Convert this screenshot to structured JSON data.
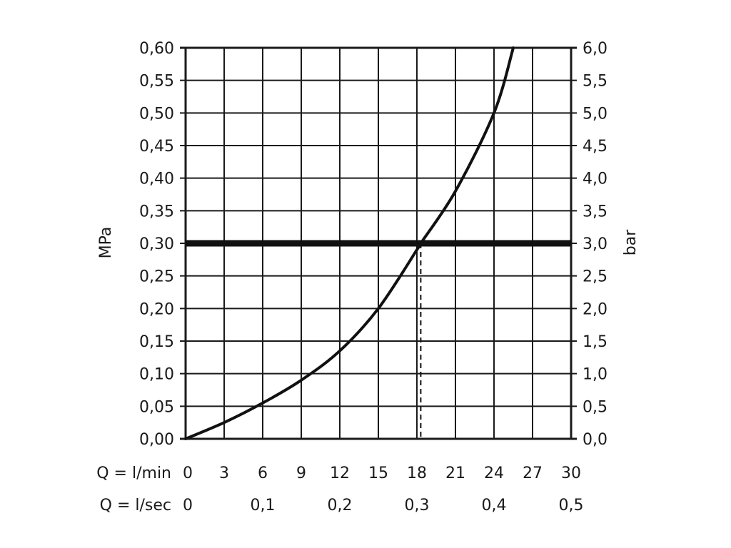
{
  "chart_data": {
    "type": "line",
    "title": "",
    "ylabel_left": "MPa",
    "ylabel_right": "bar",
    "x_rows": [
      {
        "label": "Q = l/min",
        "ticks": [
          "0",
          "3",
          "6",
          "9",
          "12",
          "15",
          "18",
          "21",
          "24",
          "27",
          "30"
        ],
        "values": [
          0,
          3,
          6,
          9,
          12,
          15,
          18,
          21,
          24,
          27,
          30
        ]
      },
      {
        "label": "Q = l/sec",
        "ticks": [
          "0",
          "0,1",
          "0,2",
          "0,3",
          "0,4",
          "0,5"
        ],
        "values": [
          0,
          6,
          12,
          18,
          24,
          30
        ]
      }
    ],
    "xlim": [
      0,
      30
    ],
    "ylim": [
      0,
      0.6
    ],
    "y_left_ticks": [
      "0,00",
      "0,05",
      "0,10",
      "0,15",
      "0,20",
      "0,25",
      "0,30",
      "0,35",
      "0,40",
      "0,45",
      "0,50",
      "0,55",
      "0,60"
    ],
    "y_right_ticks": [
      "0,0",
      "0,5",
      "1,0",
      "1,5",
      "2,0",
      "2,5",
      "3,0",
      "3,5",
      "4,0",
      "4,5",
      "5,0",
      "5,5",
      "6,0"
    ],
    "grid": true,
    "series": [
      {
        "x": [
          0,
          3,
          6,
          9,
          12,
          15,
          18,
          18.3,
          21,
          24,
          25.5
        ],
        "y": [
          0,
          0.025,
          0.055,
          0.09,
          0.135,
          0.2,
          0.29,
          0.3,
          0.38,
          0.5,
          0.6
        ]
      }
    ],
    "reference_line_y": 0.3,
    "marker_x": 18.3,
    "colors": {
      "line": "#111111",
      "grid": "#1a1a1a",
      "background": "#ffffff"
    }
  }
}
